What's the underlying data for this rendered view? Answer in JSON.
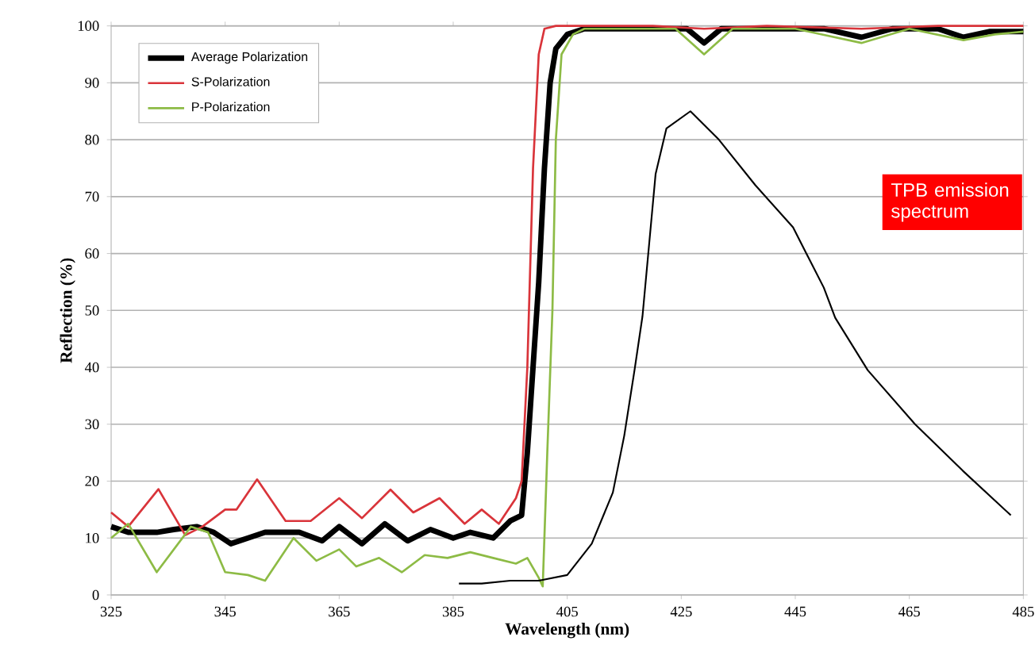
{
  "chart_data": {
    "type": "line",
    "xlabel": "Wavelength (nm)",
    "ylabel": "Reflection (%)",
    "xlim": [
      325,
      485
    ],
    "ylim": [
      0,
      100
    ],
    "xticks": [
      325,
      345,
      365,
      385,
      405,
      425,
      445,
      465,
      485
    ],
    "yticks": [
      0,
      10,
      20,
      30,
      40,
      50,
      60,
      70,
      80,
      90,
      100
    ],
    "grid": "y",
    "legend": "top left",
    "annotations": [
      "TPB emission spectrum"
    ],
    "series": [
      {
        "name": "Average Polarization",
        "color": "#000000",
        "x": [
          325,
          328,
          333,
          336,
          340,
          343,
          346,
          349,
          352,
          355,
          358,
          362,
          365,
          369,
          373,
          377,
          381,
          385,
          388,
          392,
          395,
          397,
          398,
          399,
          400,
          401,
          402,
          403,
          405,
          408,
          412,
          420,
          426,
          429,
          432,
          440,
          450,
          456.6,
          462,
          470,
          474.5,
          479,
          485
        ],
        "values": [
          12,
          11,
          11,
          11.5,
          12,
          11,
          9,
          10,
          11,
          11,
          11,
          9.5,
          12,
          9,
          12.5,
          9.5,
          11.5,
          10,
          11,
          10,
          13,
          14,
          25,
          40,
          55,
          75,
          90,
          96,
          98.5,
          99.5,
          99.5,
          99.5,
          99.5,
          97,
          99.5,
          99.5,
          99.5,
          98,
          99.5,
          99.5,
          98,
          99,
          99
        ]
      },
      {
        "name": "S-Polarization",
        "color": "#d9343a",
        "x": [
          325,
          328,
          333.3,
          338,
          341,
          345,
          347,
          350.6,
          355.6,
          360,
          365,
          369,
          374,
          378,
          382.6,
          387,
          390,
          393,
          396,
          397,
          398,
          399,
          400,
          401,
          403,
          410,
          420,
          429,
          440,
          456.6,
          470,
          485
        ],
        "values": [
          14.5,
          12,
          18.6,
          10.5,
          12,
          15,
          15,
          20.3,
          13,
          13,
          17,
          13.5,
          18.5,
          14.5,
          17,
          12.5,
          15,
          12.5,
          17,
          20,
          40,
          75,
          95,
          99.5,
          100,
          100,
          100,
          99.5,
          100,
          99.5,
          100,
          100
        ]
      },
      {
        "name": "P-Polarization",
        "color": "#8dbb45",
        "x": [
          325,
          328,
          333,
          339,
          342,
          345,
          349,
          352,
          355,
          357,
          361,
          365,
          368,
          372,
          376,
          380,
          384,
          388,
          392,
          396,
          398,
          400,
          400.7,
          401.5,
          402.4,
          403,
          404,
          406,
          408,
          415,
          424,
          429,
          434,
          445,
          456.6,
          465,
          474.5,
          480,
          485
        ],
        "values": [
          10,
          12.5,
          4,
          12,
          11,
          4,
          3.5,
          2.5,
          7,
          10,
          6,
          8,
          5,
          6.5,
          4,
          7,
          6.5,
          7.5,
          6.5,
          5.5,
          6.5,
          3,
          1.5,
          25,
          50,
          80,
          95,
          98.5,
          99.5,
          99.5,
          99.5,
          95,
          99.5,
          99.5,
          97,
          99.5,
          97.5,
          98.5,
          99
        ]
      },
      {
        "color": "#000000",
        "x": [
          386,
          390,
          395,
          400,
          405,
          409.3,
          413,
          415,
          416.8,
          418.2,
          420.5,
          422.4,
          426.6,
          431.6,
          438,
          444.6,
          450,
          452,
          457.7,
          466,
          474.4,
          482.8
        ],
        "values": [
          2,
          2,
          2.5,
          2.5,
          3.5,
          9,
          18,
          28,
          39.5,
          49,
          74,
          82,
          85,
          80,
          72,
          64.6,
          54,
          48.7,
          39.5,
          30,
          21.8,
          14
        ]
      }
    ]
  }
}
